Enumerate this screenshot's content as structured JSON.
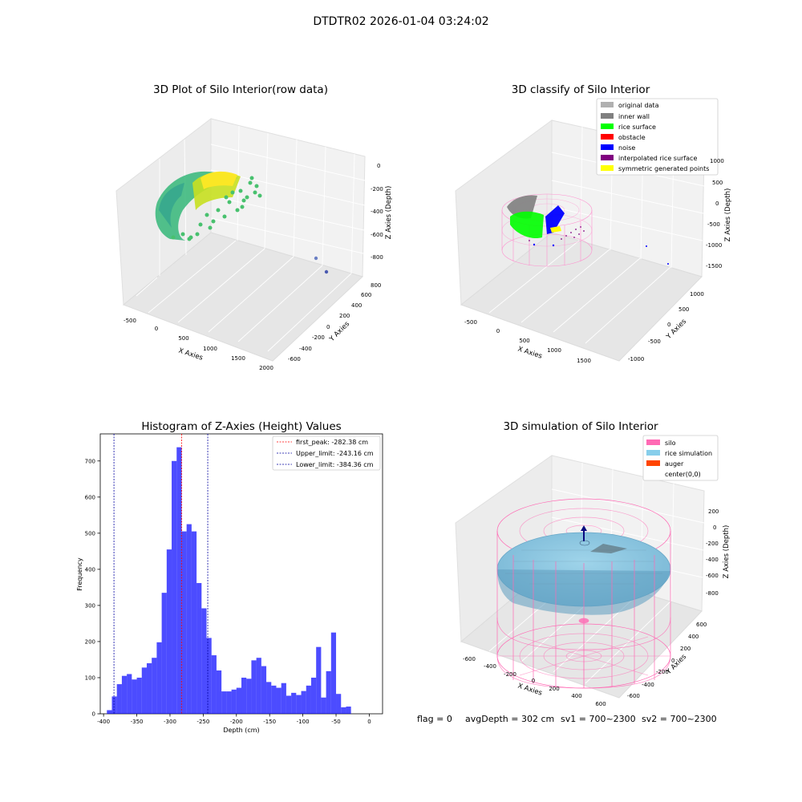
{
  "suptitle": "DTDTR02 2026-01-04 03:24:02",
  "footer": {
    "flag": "flag = 0",
    "avg": "avgDepth = 302 cm",
    "sv1": "sv1 = 700~2300",
    "sv2": "sv2 = 700~2300"
  },
  "chart_data": [
    {
      "type": "scatter",
      "title": "3D Plot of Silo Interior(row data)",
      "xlabel": "X Axies",
      "ylabel": "Y Axies",
      "zlabel": "Z Axies (Depth)",
      "x_ticks": [
        "-500",
        "0",
        "500",
        "1000",
        "1500",
        "2000"
      ],
      "y_ticks": [
        "-600",
        "-400",
        "-200",
        "0",
        "200",
        "400",
        "600",
        "800"
      ],
      "z_ticks": [
        "0",
        "-200",
        "-400",
        "-600",
        "-800"
      ],
      "colors": [
        "#440154",
        "#31688e",
        "#35b779",
        "#fde725"
      ]
    },
    {
      "type": "scatter",
      "title": "3D classify of Silo Interior",
      "xlabel": "X Axies",
      "ylabel": "Y Axies",
      "zlabel": "Z Axies (Depth)",
      "x_ticks": [
        "-500",
        "0",
        "500",
        "1000",
        "1500"
      ],
      "y_ticks": [
        "-1000",
        "-500",
        "0",
        "500",
        "1000"
      ],
      "z_ticks": [
        "1000",
        "500",
        "0",
        "-500",
        "-1000",
        "-1500"
      ],
      "legend": [
        {
          "label": "original data",
          "color": "#b0b0b0"
        },
        {
          "label": "inner wall",
          "color": "#808080"
        },
        {
          "label": "rice surface",
          "color": "#00ff00"
        },
        {
          "label": "obstacle",
          "color": "#ff0000"
        },
        {
          "label": "noise",
          "color": "#0000ff"
        },
        {
          "label": "interpolated rice surface",
          "color": "#800080"
        },
        {
          "label": "symmetric generated points",
          "color": "#ffff00"
        }
      ],
      "legend_position": "top-right"
    },
    {
      "type": "bar",
      "title": "Histogram of Z-Axies (Height) Values",
      "xlabel": "Depth (cm)",
      "ylabel": "Frequency",
      "bin_start": -395,
      "bin_width": 7.5,
      "values": [
        10,
        48,
        82,
        105,
        110,
        95,
        100,
        128,
        140,
        155,
        198,
        335,
        455,
        700,
        738,
        505,
        525,
        505,
        362,
        292,
        210,
        162,
        120,
        62,
        62,
        67,
        72,
        100,
        97,
        148,
        155,
        132,
        88,
        78,
        72,
        85,
        50,
        58,
        52,
        63,
        78,
        100,
        185,
        45,
        118,
        225,
        55,
        18,
        20
      ],
      "xlim": [
        -405,
        20
      ],
      "ylim": [
        0,
        775
      ],
      "x_ticks": [
        -400,
        -350,
        -300,
        -250,
        -200,
        -150,
        -100,
        -50,
        0
      ],
      "y_ticks": [
        0,
        100,
        200,
        300,
        400,
        500,
        600,
        700
      ],
      "bar_color": "#0000ff",
      "vlines": [
        {
          "x": -282.38,
          "color": "#ff0000",
          "label": "first_peak: -282.38 cm"
        },
        {
          "x": -243.16,
          "color": "#0000a0",
          "label": "Upper_limit: -243.16 cm"
        },
        {
          "x": -384.36,
          "color": "#0000a0",
          "label": "Lower_limit: -384.36 cm"
        }
      ],
      "legend_position": "top-right"
    },
    {
      "type": "scatter",
      "title": "3D simulation of Silo Interior",
      "xlabel": "X Axies",
      "ylabel": "Y Axies",
      "zlabel": "Z Axies (Depth)",
      "x_ticks": [
        "-600",
        "-400",
        "-200",
        "0",
        "200",
        "400",
        "600"
      ],
      "y_ticks": [
        "-600",
        "-400",
        "-200",
        "0",
        "200",
        "400",
        "600"
      ],
      "z_ticks": [
        "200",
        "0",
        "-200",
        "-400",
        "-600",
        "-800"
      ],
      "legend": [
        {
          "label": "silo",
          "color": "#ff69b4"
        },
        {
          "label": "rice simulation",
          "color": "#87ceeb"
        },
        {
          "label": "auger",
          "color": "#ff4500"
        },
        {
          "label": "center(0,0)",
          "color": "#ffffff"
        }
      ],
      "legend_position": "top-right"
    }
  ]
}
